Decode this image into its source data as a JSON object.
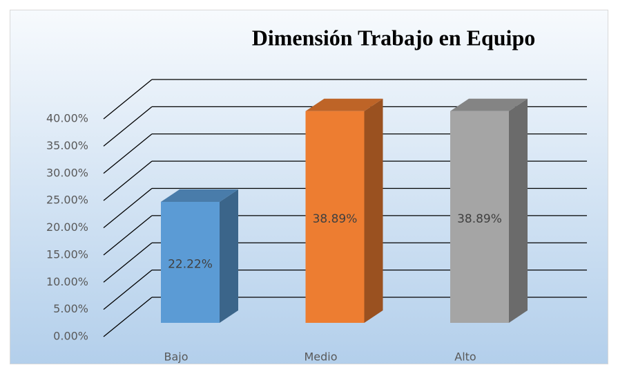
{
  "chart_data": {
    "type": "bar3d",
    "title": "Dimensión Trabajo en Equipo",
    "categories": [
      "Bajo",
      "Medio",
      "Alto"
    ],
    "values": [
      22.22,
      38.89,
      38.89
    ],
    "value_labels": [
      "22.22%",
      "38.89%",
      "38.89%"
    ],
    "colors": [
      "#5b9bd5",
      "#ed7d31",
      "#a5a5a5"
    ],
    "ylim": [
      0,
      40
    ],
    "yticks": [
      {
        "value": 0,
        "label": "0.00%"
      },
      {
        "value": 5,
        "label": "5.00%"
      },
      {
        "value": 10,
        "label": "10.00%"
      },
      {
        "value": 15,
        "label": "15.00%"
      },
      {
        "value": 20,
        "label": "20.00%"
      },
      {
        "value": 25,
        "label": "25.00%"
      },
      {
        "value": 30,
        "label": "30.00%"
      },
      {
        "value": 35,
        "label": "35.00%"
      },
      {
        "value": 40,
        "label": "40.00%"
      }
    ],
    "grid": true
  }
}
